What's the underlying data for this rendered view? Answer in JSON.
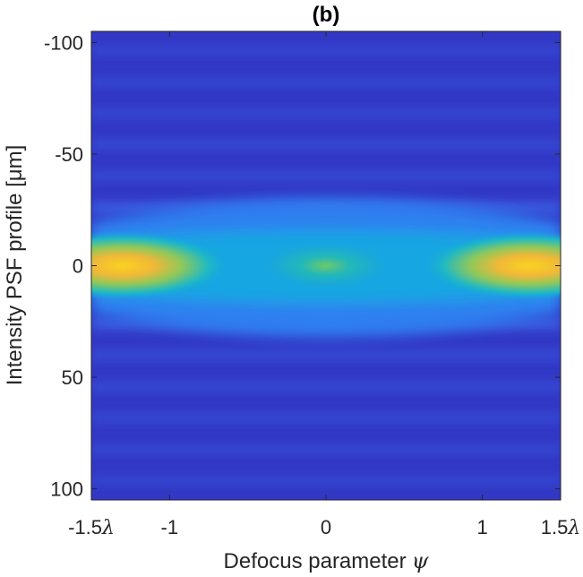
{
  "chart_data": {
    "type": "heatmap",
    "title": "(b)",
    "xlabel": "Defocus parameter",
    "xlabel_symbol": "ψ",
    "ylabel": "Intensity PSF profile [μm]",
    "x_range_lambda": [
      -1.5,
      1.5
    ],
    "y_range_um": [
      -105,
      105
    ],
    "y_reversed": true,
    "colormap": "parula",
    "grid": false,
    "x_ticks": [
      {
        "value": -1.5,
        "num": "-1.5",
        "sym": "λ"
      },
      {
        "value": -1.0,
        "num": "-1",
        "sym": ""
      },
      {
        "value": 0.0,
        "num": "0",
        "sym": ""
      },
      {
        "value": 1.0,
        "num": "1",
        "sym": ""
      },
      {
        "value": 1.5,
        "num": "1.5",
        "sym": "λ"
      }
    ],
    "y_ticks": [
      {
        "value": -100,
        "label": "-100"
      },
      {
        "value": -50,
        "label": "-50"
      },
      {
        "value": 0,
        "label": "0"
      },
      {
        "value": 50,
        "label": "50"
      },
      {
        "value": 100,
        "label": "100"
      }
    ],
    "intensity_peaks": [
      {
        "x_lambda": -1.3,
        "y_um": 0,
        "relative_intensity": 1.0
      },
      {
        "x_lambda": 0.0,
        "y_um": 0,
        "relative_intensity": 0.6
      },
      {
        "x_lambda": 1.3,
        "y_um": 0,
        "relative_intensity": 1.0
      }
    ]
  }
}
